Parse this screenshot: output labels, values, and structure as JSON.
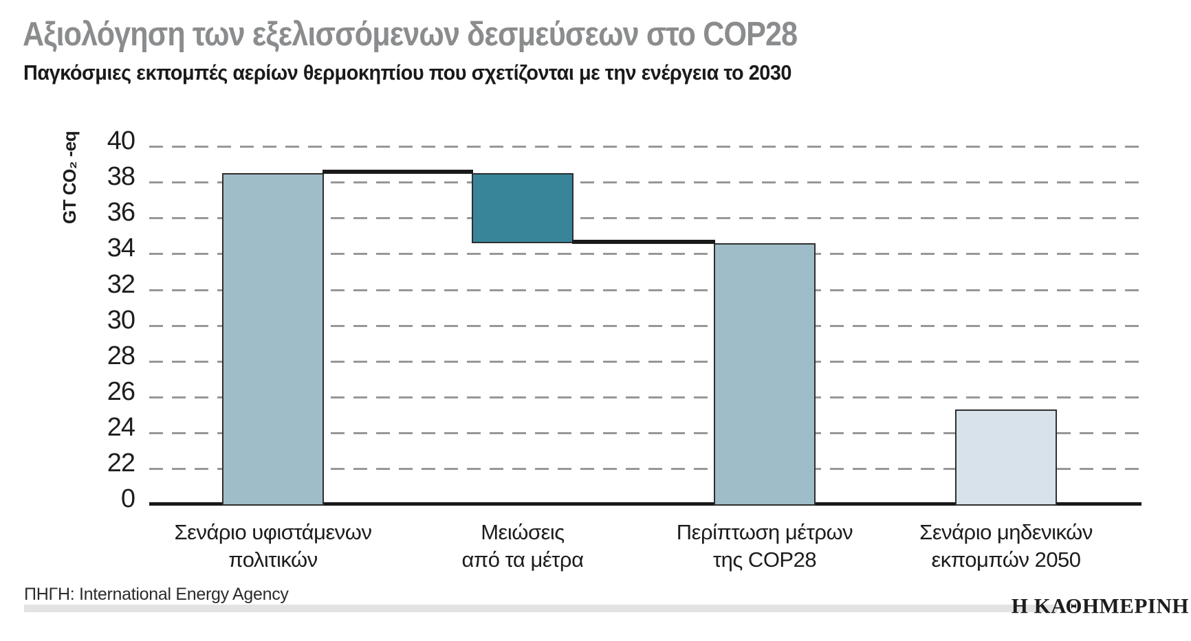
{
  "header": {
    "title": "Αξιολόγηση των εξελισσόμενων δεσμεύσεων στο COP28",
    "subtitle": "Παγκόσμιες εκπομπές αερίων θερμοκηπίου που σχετίζονται με την ενέργεια το 2030"
  },
  "chart_data": {
    "type": "bar",
    "subtype": "waterfall",
    "title": "Αξιολόγηση των εξελισσόμενων δεσμεύσεων στο COP28",
    "subtitle": "Παγκόσμιες εκπομπές αερίων θερμοκηπίου που σχετίζονται με την ενέργεια το 2030",
    "ylabel": "GT CO₂ -eq",
    "xlabel": "",
    "y_ticks": [
      40,
      38,
      36,
      34,
      32,
      30,
      28,
      26,
      24,
      22,
      0
    ],
    "axis_note": "broken y-axis: 0 shown below compressed gap, linear from 22 to 40",
    "grid": "dashed horizontal",
    "legend": "none",
    "categories": [
      "Σενάριο υφιστάμενων πολιτικών",
      "Μειώσεις από τα μέτρα",
      "Περίπτωση μέτρων της COP28",
      "Σενάριο μηδενικών εκπομπών 2050"
    ],
    "bars": [
      {
        "label_lines": [
          "Σενάριο υφιστάμενων",
          "πολιτικών"
        ],
        "base": 0,
        "top": 38.5,
        "color": "#9fbcc9"
      },
      {
        "label_lines": [
          "Μειώσεις",
          "από τα μέτρα"
        ],
        "base": 34.6,
        "top": 38.5,
        "color": "#38859a"
      },
      {
        "label_lines": [
          "Περίπτωση μέτρων",
          "της COP28"
        ],
        "base": 0,
        "top": 34.6,
        "color": "#9fbcc9"
      },
      {
        "label_lines": [
          "Σενάριο μηδενικών",
          "εκπομπών 2050"
        ],
        "base": 0,
        "top": 25.3,
        "color": "#d7e2ea"
      }
    ],
    "connectors": [
      {
        "value": 38.5,
        "from": 0,
        "to": 1
      },
      {
        "value": 34.6,
        "from": 1,
        "to": 2
      }
    ]
  },
  "colors": {
    "bar_light_blue": "#9fbcc9",
    "bar_teal": "#38859a",
    "bar_pale_blue": "#d7e2ea",
    "bar_border": "#2e2e2e",
    "connector_black": "#1a1a1a",
    "gridline_grey": "#979797",
    "title_grey": "#8a8c8e",
    "text_black": "#1a1a1a",
    "divider_grey": "#e3e3e3"
  },
  "footer": {
    "source": "ΠΗΓΗ: International Energy Agency",
    "logo": "Η ΚΑΘΗΜΕΡΙΝΗ"
  }
}
